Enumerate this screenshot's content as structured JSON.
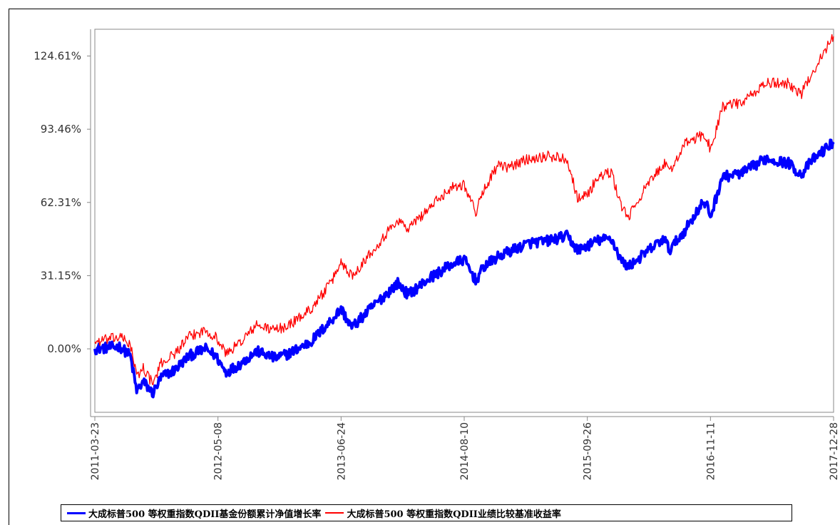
{
  "chart_data": {
    "type": "line",
    "title": "",
    "xlabel": "",
    "ylabel": "",
    "y_tick_labels": [
      "124.61%",
      "93.46%",
      "62.31%",
      "31.15%",
      "0.00%"
    ],
    "x_tick_labels": [
      "2011-03-23",
      "2012-05-08",
      "2013-06-24",
      "2014-08-10",
      "2015-09-26",
      "2016-11-11",
      "2017-12-28"
    ],
    "xlim": [
      "2011-03-23",
      "2017-12-28"
    ],
    "ylim": [
      -27,
      136
    ],
    "grid": false,
    "legend_position": "bottom",
    "series": [
      {
        "name": "大成标普500等权重指数QDII基金份额累计净值增长率",
        "color": "#0000ff",
        "x": [
          "2011-03-23",
          "2011-06-15",
          "2011-07-20",
          "2011-08-10",
          "2011-09-01",
          "2011-10-03",
          "2011-11-01",
          "2011-12-15",
          "2012-02-01",
          "2012-03-27",
          "2012-05-01",
          "2012-06-04",
          "2012-07-15",
          "2012-09-14",
          "2012-11-15",
          "2012-12-31",
          "2013-03-15",
          "2013-05-21",
          "2013-06-24",
          "2013-07-30",
          "2013-10-08",
          "2013-12-31",
          "2014-02-03",
          "2014-04-15",
          "2014-06-30",
          "2014-08-10",
          "2014-09-18",
          "2014-10-15",
          "2014-11-30",
          "2014-12-31",
          "2015-03-15",
          "2015-05-20",
          "2015-07-20",
          "2015-08-25",
          "2015-09-29",
          "2015-10-30",
          "2015-12-15",
          "2016-01-20",
          "2016-02-11",
          "2016-03-31",
          "2016-06-08",
          "2016-06-27",
          "2016-08-15",
          "2016-10-15",
          "2016-11-04",
          "2016-11-11",
          "2016-12-20",
          "2017-03-01",
          "2017-05-15",
          "2017-08-01",
          "2017-09-10",
          "2017-10-15",
          "2017-12-28"
        ],
        "y": [
          0,
          1,
          -3,
          -18,
          -14,
          -19,
          -12,
          -9,
          -3,
          0,
          -3,
          -10,
          -7,
          -1,
          -4,
          -2,
          3,
          12,
          17,
          9,
          18,
          28,
          23,
          30,
          36,
          38,
          29,
          35,
          39,
          41,
          45,
          46,
          48,
          42,
          44,
          46,
          47,
          37,
          35,
          40,
          47,
          42,
          50,
          62,
          60,
          56,
          73,
          75,
          81,
          79,
          74,
          80,
          88
        ]
      },
      {
        "name": "大成标普500等权重指数QDII业绩比较基准收益率",
        "color": "#ff0000",
        "x": [
          "2011-03-23",
          "2011-06-15",
          "2011-07-20",
          "2011-08-10",
          "2011-09-01",
          "2011-10-03",
          "2011-11-01",
          "2011-12-15",
          "2012-02-01",
          "2012-03-27",
          "2012-05-01",
          "2012-06-04",
          "2012-07-15",
          "2012-09-14",
          "2012-11-15",
          "2012-12-31",
          "2013-03-15",
          "2013-05-21",
          "2013-06-24",
          "2013-07-30",
          "2013-10-08",
          "2013-12-31",
          "2014-02-03",
          "2014-04-15",
          "2014-06-30",
          "2014-08-10",
          "2014-09-18",
          "2014-10-15",
          "2014-11-30",
          "2014-12-31",
          "2015-03-15",
          "2015-05-20",
          "2015-07-20",
          "2015-08-25",
          "2015-09-29",
          "2015-10-30",
          "2015-12-15",
          "2016-01-20",
          "2016-02-11",
          "2016-03-31",
          "2016-06-08",
          "2016-06-27",
          "2016-08-15",
          "2016-10-15",
          "2016-11-04",
          "2016-11-11",
          "2016-12-20",
          "2017-03-01",
          "2017-05-15",
          "2017-08-01",
          "2017-09-10",
          "2017-10-15",
          "2017-12-28"
        ],
        "y": [
          3,
          5,
          2,
          -12,
          -8,
          -15,
          -6,
          -2,
          5,
          8,
          5,
          -2,
          2,
          10,
          8,
          10,
          17,
          28,
          37,
          31,
          42,
          55,
          51,
          60,
          69,
          70,
          58,
          68,
          78,
          77,
          81,
          82,
          81,
          64,
          66,
          73,
          75,
          60,
          56,
          67,
          79,
          75,
          87,
          91,
          88,
          84,
          103,
          105,
          113,
          113,
          108,
          117,
          133
        ]
      }
    ]
  },
  "legend": {
    "item1_label": "大成标普500  等权重指数QDII基金份额累计净值增长率",
    "item2_label": "大成标普500  等权重指数QDII业绩比较基准收益率"
  }
}
